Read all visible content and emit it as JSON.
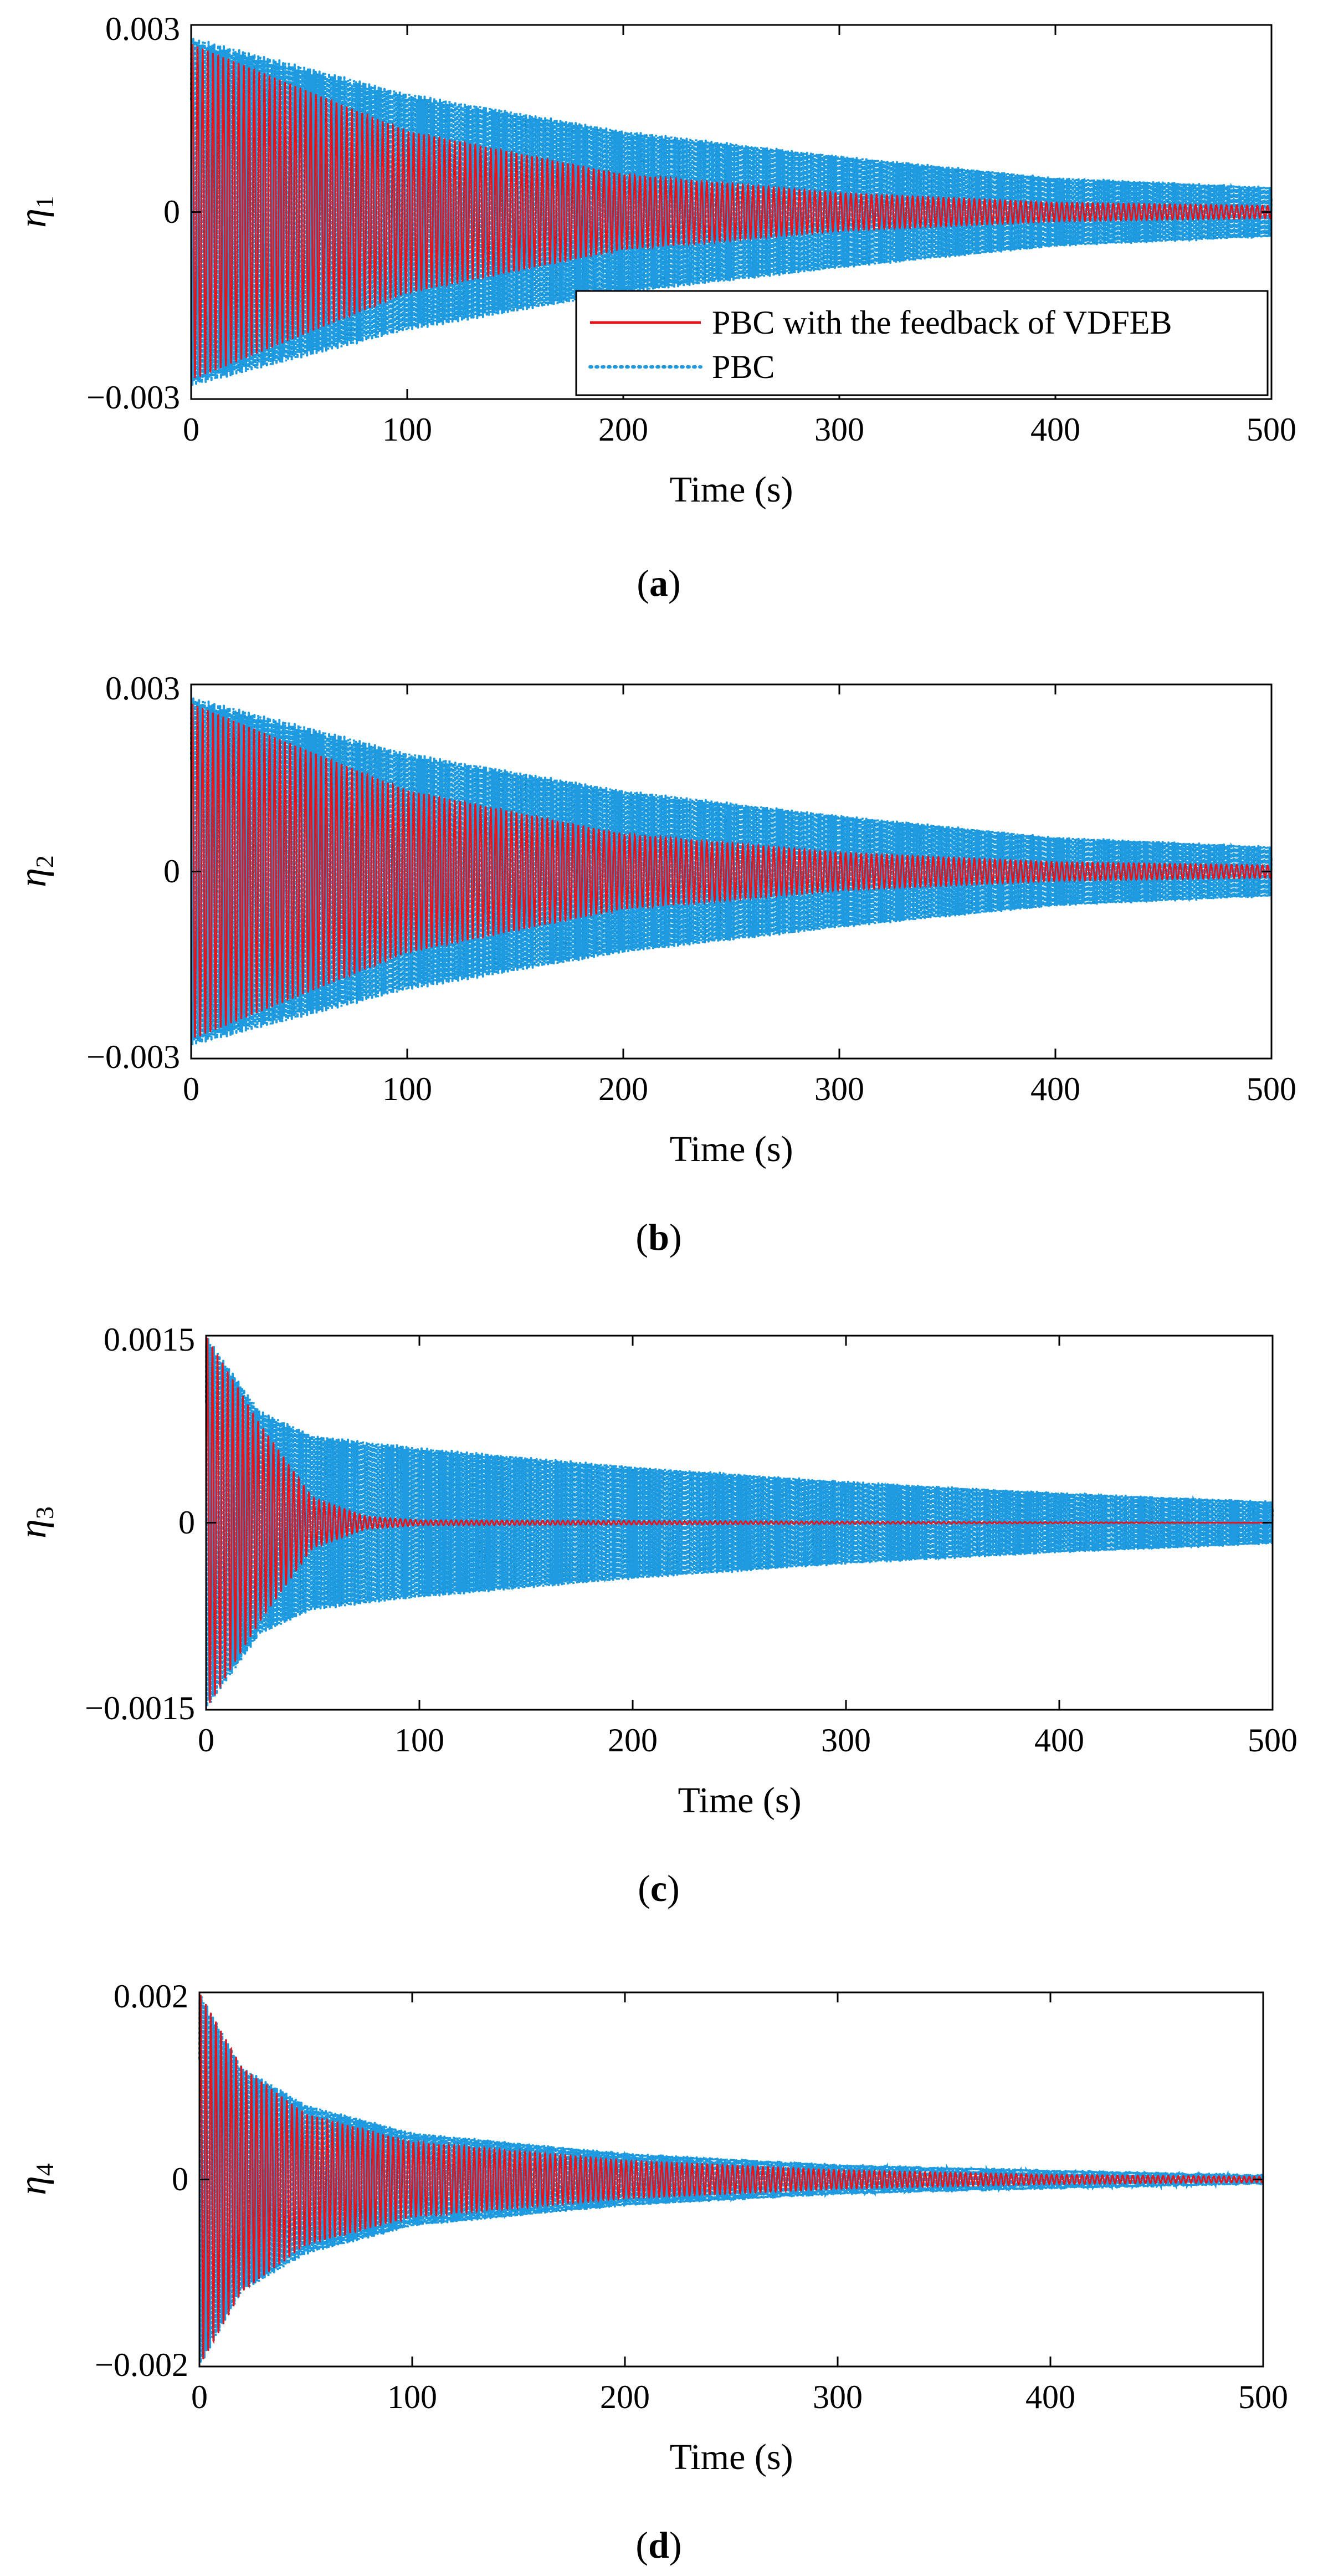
{
  "chart_data": [
    {
      "type": "line",
      "panel_label": "a",
      "ylabel": "η",
      "ylabel_sub": "1",
      "xlabel": "Time (s)",
      "xlim": [
        0,
        500
      ],
      "ylim": [
        -0.003,
        0.003
      ],
      "xticks": [
        "0",
        "100",
        "200",
        "300",
        "400",
        "500"
      ],
      "yticks": [
        "0.003",
        "0",
        "−0.003"
      ],
      "legend": {
        "position": "inside-lower-right",
        "entries": [
          "PBC with the feedback of VDFEB",
          "PBC"
        ]
      },
      "series": [
        {
          "name": "PBC with the feedback of VDFEB",
          "style": "solid",
          "color": "#e8141c",
          "envelope": {
            "t": [
              0,
              100,
              200,
              300,
              400,
              500
            ],
            "amplitude": [
              0.0027,
              0.0013,
              0.0006,
              0.0003,
              0.00015,
              0.0001
            ]
          }
        },
        {
          "name": "PBC",
          "style": "dotted",
          "color": "#1e9be0",
          "envelope": {
            "t": [
              0,
              100,
              200,
              300,
              400,
              500
            ],
            "amplitude": [
              0.0028,
              0.0019,
              0.0013,
              0.0009,
              0.00055,
              0.0004
            ]
          }
        }
      ]
    },
    {
      "type": "line",
      "panel_label": "b",
      "ylabel": "η",
      "ylabel_sub": "2",
      "xlabel": "Time (s)",
      "xlim": [
        0,
        500
      ],
      "ylim": [
        -0.003,
        0.003
      ],
      "xticks": [
        "0",
        "100",
        "200",
        "300",
        "400",
        "500"
      ],
      "yticks": [
        "0.003",
        "0",
        "−0.003"
      ],
      "series": [
        {
          "name": "PBC with the feedback of VDFEB",
          "style": "solid",
          "color": "#e8141c",
          "envelope": {
            "t": [
              0,
              100,
              200,
              300,
              400,
              500
            ],
            "amplitude": [
              0.0027,
              0.0013,
              0.0006,
              0.0003,
              0.00015,
              0.0001
            ]
          }
        },
        {
          "name": "PBC",
          "style": "dotted",
          "color": "#1e9be0",
          "envelope": {
            "t": [
              0,
              100,
              200,
              300,
              400,
              500
            ],
            "amplitude": [
              0.0028,
              0.0019,
              0.0013,
              0.0009,
              0.00055,
              0.0004
            ]
          }
        }
      ]
    },
    {
      "type": "line",
      "panel_label": "c",
      "ylabel": "η",
      "ylabel_sub": "3",
      "xlabel": "Time (s)",
      "xlim": [
        0,
        500
      ],
      "ylim": [
        -0.0015,
        0.0015
      ],
      "xticks": [
        "0",
        "100",
        "200",
        "300",
        "400",
        "500"
      ],
      "yticks": [
        "0.0015",
        "0",
        "−0.0015"
      ],
      "series": [
        {
          "name": "PBC with the feedback of VDFEB",
          "style": "solid",
          "color": "#e8141c",
          "envelope": {
            "t": [
              0,
              25,
              50,
              75,
              100,
              500
            ],
            "amplitude": [
              0.0015,
              0.0008,
              0.0002,
              5e-05,
              2e-05,
              0.0
            ]
          }
        },
        {
          "name": "PBC",
          "style": "dotted",
          "color": "#1e9be0",
          "envelope": {
            "t": [
              0,
              25,
              50,
              100,
              200,
              300,
              400,
              500
            ],
            "amplitude": [
              0.0015,
              0.0009,
              0.0007,
              0.0006,
              0.00045,
              0.00033,
              0.00024,
              0.00017
            ]
          }
        }
      ]
    },
    {
      "type": "line",
      "panel_label": "d",
      "ylabel": "η",
      "ylabel_sub": "4",
      "xlabel": "Time (s)",
      "xlim": [
        0,
        500
      ],
      "ylim": [
        -0.002,
        0.002
      ],
      "xticks": [
        "0",
        "100",
        "200",
        "300",
        "400",
        "500"
      ],
      "yticks": [
        "0.002",
        "0",
        "−0.002"
      ],
      "series": [
        {
          "name": "PBC with the feedback of VDFEB",
          "style": "solid",
          "color": "#e8141c",
          "envelope": {
            "t": [
              0,
              20,
              50,
              100,
              200,
              300,
              400,
              500
            ],
            "amplitude": [
              0.002,
              0.0012,
              0.0007,
              0.0004,
              0.0002,
              0.0001,
              5e-05,
              3e-05
            ]
          }
        },
        {
          "name": "PBC",
          "style": "dotted",
          "color": "#1e9be0",
          "envelope": {
            "t": [
              0,
              20,
              50,
              100,
              200,
              300,
              400,
              500
            ],
            "amplitude": [
              0.002,
              0.0012,
              0.0008,
              0.0005,
              0.00028,
              0.00016,
              0.0001,
              5e-05
            ]
          }
        }
      ]
    }
  ]
}
